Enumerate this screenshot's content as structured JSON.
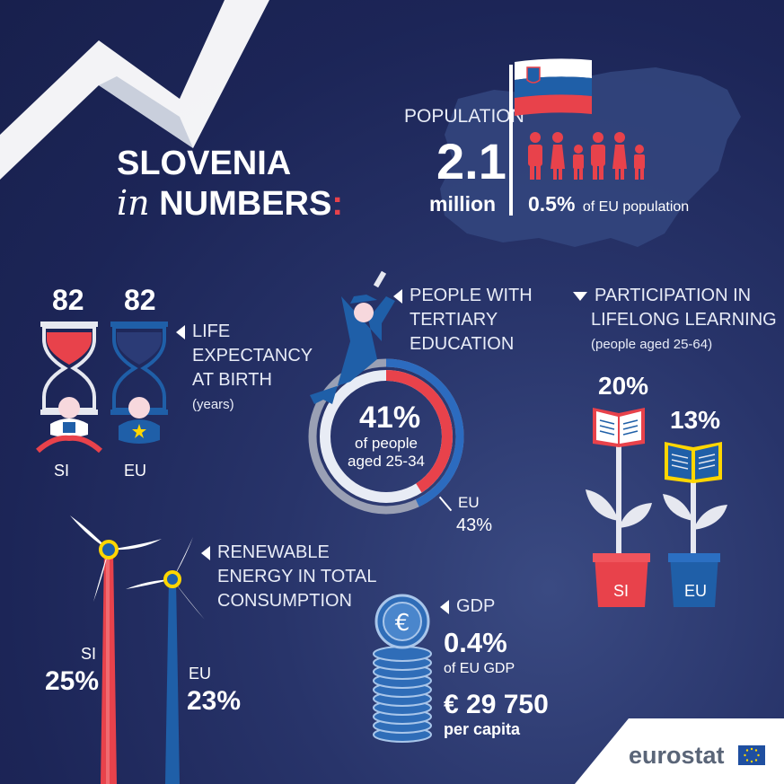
{
  "header": {
    "title_line1": "SLOVENIA",
    "title_in": "in",
    "title_line2": "NUMBERS",
    "colon": ":"
  },
  "population": {
    "label": "POPULATION",
    "value": "2.1",
    "unit": "million",
    "share": "0.5%",
    "share_label": "of EU population"
  },
  "life_expectancy": {
    "si_value": "82",
    "eu_value": "82",
    "label_lines": [
      "LIFE",
      "EXPECTANCY",
      "AT BIRTH"
    ],
    "unit": "(years)",
    "si_label": "SI",
    "eu_label": "EU"
  },
  "tertiary_education": {
    "label_lines": [
      "PEOPLE WITH",
      "TERTIARY",
      "EDUCATION"
    ],
    "si_value": "41%",
    "si_sub1": "of people",
    "si_sub2": "aged 25-34",
    "si_fraction": 0.41,
    "eu_label": "EU",
    "eu_value": "43%",
    "eu_fraction": 0.43
  },
  "lifelong_learning": {
    "label_lines": [
      "PARTICIPATION IN",
      "LIFELONG LEARNING"
    ],
    "sub": "(people aged 25-64)",
    "si_value": "20%",
    "eu_value": "13%",
    "si_label": "SI",
    "eu_label": "EU"
  },
  "renewable_energy": {
    "label_lines": [
      "RENEWABLE",
      "ENERGY IN TOTAL",
      "CONSUMPTION"
    ],
    "si_label": "SI",
    "si_value": "25%",
    "eu_label": "EU",
    "eu_value": "23%"
  },
  "gdp": {
    "label": "GDP",
    "share": "0.4%",
    "share_label": "of EU GDP",
    "per_capita": "€ 29 750",
    "per_capita_label": "per capita"
  },
  "footer": {
    "logo_text": "eurostat"
  },
  "colors": {
    "red": "#e8424b",
    "blue": "#1f5fa8",
    "bg_dark": "#1c2557",
    "map": "#3a5290"
  }
}
